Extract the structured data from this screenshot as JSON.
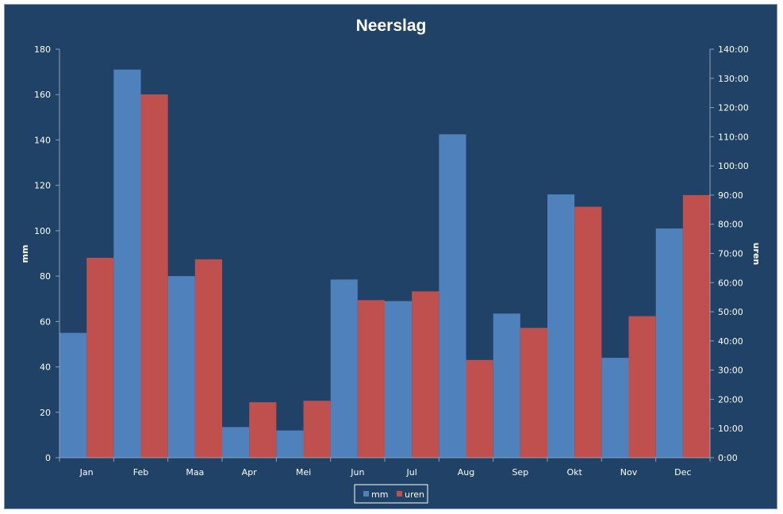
{
  "chart_data": {
    "type": "bar",
    "title": "Neerslag",
    "categories": [
      "Jan",
      "Feb",
      "Maa",
      "Apr",
      "Mei",
      "Jun",
      "Jul",
      "Aug",
      "Sep",
      "Okt",
      "Nov",
      "Dec"
    ],
    "y_left": {
      "label": "mm",
      "range": [
        0,
        180
      ],
      "ticks": [
        "0",
        "20",
        "40",
        "60",
        "80",
        "100",
        "120",
        "140",
        "160",
        "180"
      ]
    },
    "y_right": {
      "label": "uren",
      "range_hours": [
        0,
        140
      ],
      "ticks": [
        "0:00",
        "10:00",
        "20:00",
        "30:00",
        "40:00",
        "50:00",
        "60:00",
        "70:00",
        "80:00",
        "90:00",
        "100:00",
        "110:00",
        "120:00",
        "130:00",
        "140:00"
      ]
    },
    "series": [
      {
        "name": "mm",
        "axis": "left",
        "color": "#4f81bd",
        "values": [
          55,
          171,
          80,
          13.5,
          12,
          78.5,
          69,
          142.5,
          63.5,
          116,
          44,
          101
        ]
      },
      {
        "name": "uren",
        "axis": "right",
        "color": "#c0504d",
        "values_hours": [
          68.5,
          124.5,
          68,
          19,
          19.5,
          54,
          57,
          33.5,
          44.5,
          86,
          48.5,
          90
        ]
      }
    ],
    "legend": "bottom",
    "grid": false
  }
}
